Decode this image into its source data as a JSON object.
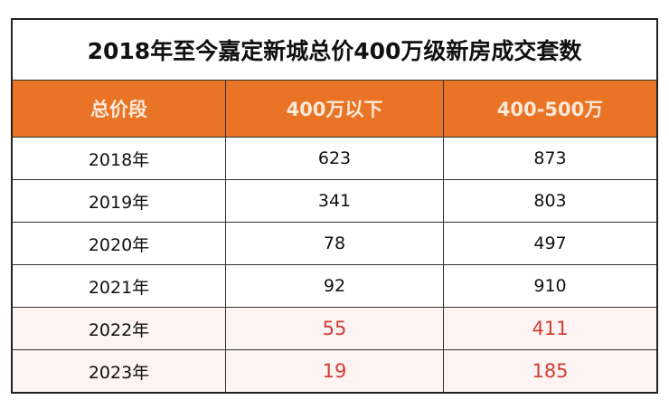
{
  "chart_data": {
    "type": "table",
    "title": "2018年至今嘉定新城总价400万级新房成交套数",
    "columns": [
      "总价段",
      "400万以下",
      "400-500万"
    ],
    "rows": [
      {
        "year": "2018年",
        "values": [
          623,
          873
        ],
        "highlight": false
      },
      {
        "year": "2019年",
        "values": [
          341,
          803
        ],
        "highlight": false
      },
      {
        "year": "2020年",
        "values": [
          78,
          497
        ],
        "highlight": false
      },
      {
        "year": "2021年",
        "values": [
          92,
          910
        ],
        "highlight": false
      },
      {
        "year": "2022年",
        "values": [
          55,
          411
        ],
        "highlight": true
      },
      {
        "year": "2023年",
        "values": [
          19,
          185
        ],
        "highlight": true
      }
    ],
    "colors": {
      "header": "#e97425",
      "highlight_text": "#cf3f35",
      "highlight_bg": "#fdf3f2"
    }
  }
}
